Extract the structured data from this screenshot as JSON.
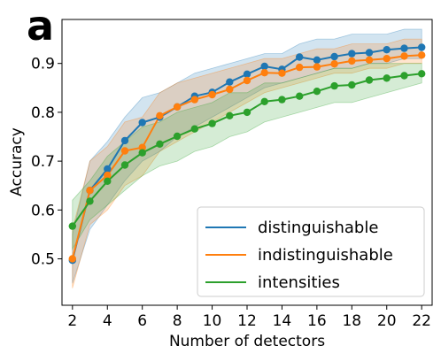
{
  "panel_label": "a",
  "chart_data": {
    "type": "line",
    "xlabel": "Number of detectors",
    "ylabel": "Accuracy",
    "xlim": [
      1.4,
      22.6
    ],
    "ylim": [
      0.405,
      0.99
    ],
    "xticks": [
      2,
      4,
      6,
      8,
      10,
      12,
      14,
      16,
      18,
      20,
      22
    ],
    "yticks": [
      0.5,
      0.6,
      0.7,
      0.8,
      0.9
    ],
    "ytick_labels": [
      "0.5",
      "0.6",
      "0.7",
      "0.8",
      "0.9"
    ],
    "legend_position": "lower-right",
    "grid": false,
    "x": [
      2,
      3,
      4,
      5,
      6,
      7,
      8,
      9,
      10,
      11,
      12,
      13,
      14,
      15,
      16,
      17,
      18,
      19,
      20,
      21,
      22
    ],
    "series": [
      {
        "name": "distinguishable",
        "color": "#1f77b4",
        "values": [
          0.497,
          0.64,
          0.684,
          0.742,
          0.779,
          0.79,
          0.811,
          0.833,
          0.841,
          0.862,
          0.878,
          0.894,
          0.888,
          0.913,
          0.907,
          0.914,
          0.92,
          0.922,
          0.928,
          0.931,
          0.933
        ],
        "lower": [
          0.45,
          0.56,
          0.61,
          0.66,
          0.7,
          0.72,
          0.75,
          0.77,
          0.79,
          0.81,
          0.83,
          0.85,
          0.86,
          0.87,
          0.88,
          0.89,
          0.89,
          0.9,
          0.9,
          0.91,
          0.91
        ],
        "upper": [
          0.55,
          0.7,
          0.74,
          0.79,
          0.83,
          0.84,
          0.86,
          0.88,
          0.89,
          0.9,
          0.91,
          0.92,
          0.92,
          0.94,
          0.95,
          0.95,
          0.96,
          0.96,
          0.96,
          0.97,
          0.97
        ]
      },
      {
        "name": "indistinguishable",
        "color": "#ff7f0e",
        "values": [
          0.5,
          0.64,
          0.671,
          0.721,
          0.728,
          0.793,
          0.811,
          0.826,
          0.836,
          0.847,
          0.865,
          0.881,
          0.88,
          0.892,
          0.893,
          0.899,
          0.905,
          0.907,
          0.91,
          0.915,
          0.917
        ],
        "lower": [
          0.44,
          0.57,
          0.6,
          0.65,
          0.67,
          0.72,
          0.74,
          0.76,
          0.78,
          0.8,
          0.82,
          0.84,
          0.85,
          0.86,
          0.87,
          0.88,
          0.88,
          0.89,
          0.89,
          0.9,
          0.9
        ],
        "upper": [
          0.56,
          0.7,
          0.73,
          0.78,
          0.79,
          0.84,
          0.86,
          0.87,
          0.88,
          0.89,
          0.9,
          0.91,
          0.91,
          0.92,
          0.93,
          0.93,
          0.94,
          0.94,
          0.94,
          0.95,
          0.95
        ]
      },
      {
        "name": "intensities",
        "color": "#2ca02c",
        "values": [
          0.567,
          0.618,
          0.659,
          0.692,
          0.717,
          0.735,
          0.751,
          0.766,
          0.777,
          0.793,
          0.8,
          0.822,
          0.826,
          0.833,
          0.843,
          0.854,
          0.856,
          0.866,
          0.87,
          0.875,
          0.879
        ],
        "lower": [
          0.52,
          0.58,
          0.61,
          0.64,
          0.67,
          0.69,
          0.7,
          0.72,
          0.73,
          0.75,
          0.76,
          0.78,
          0.79,
          0.8,
          0.81,
          0.82,
          0.82,
          0.83,
          0.84,
          0.85,
          0.86
        ],
        "upper": [
          0.62,
          0.66,
          0.71,
          0.74,
          0.77,
          0.78,
          0.8,
          0.81,
          0.82,
          0.84,
          0.84,
          0.86,
          0.86,
          0.87,
          0.88,
          0.89,
          0.89,
          0.9,
          0.9,
          0.9,
          0.9
        ]
      }
    ]
  }
}
